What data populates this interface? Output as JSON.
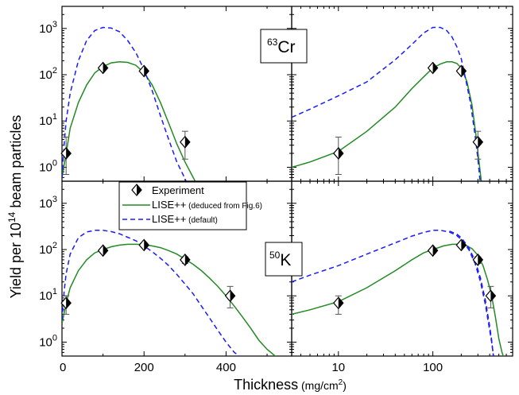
{
  "chart_data": [
    {
      "panel": "top-left",
      "type": "scatter",
      "xscale": "linear",
      "yscale": "log",
      "xlim": [
        0,
        560
      ],
      "ylim": [
        0.5,
        3000
      ],
      "isotope": {
        "mass": "63",
        "symbol": "Cr"
      },
      "experiment": [
        {
          "x": 10,
          "y": 2.0,
          "err": [
            0.7,
            4.5
          ]
        },
        {
          "x": 100,
          "y": 140,
          "err": [
            130,
            150
          ]
        },
        {
          "x": 200,
          "y": 120,
          "err": [
            110,
            130
          ]
        },
        {
          "x": 300,
          "y": 3.5,
          "err": [
            1.5,
            6
          ]
        }
      ],
      "series": [
        {
          "name": "LISE++",
          "style": "solid",
          "color": "#228b22",
          "x": [
            0,
            10,
            20,
            40,
            60,
            80,
            100,
            120,
            140,
            160,
            180,
            200,
            220,
            240,
            260,
            280,
            300,
            320,
            330
          ],
          "y": [
            0.6,
            2.0,
            7,
            25,
            60,
            110,
            150,
            180,
            190,
            185,
            160,
            110,
            60,
            25,
            9,
            3.2,
            1.3,
            0.6,
            0.4
          ]
        },
        {
          "name": "LISE++",
          "style": "dashed",
          "color": "#1a1aff",
          "x": [
            0,
            5,
            10,
            20,
            40,
            60,
            80,
            100,
            120,
            140,
            160,
            180,
            200,
            220,
            240,
            260,
            280,
            295,
            305
          ],
          "y": [
            0.6,
            3,
            10,
            40,
            200,
            550,
            900,
            1050,
            1020,
            850,
            550,
            300,
            130,
            45,
            13,
            4,
            1.3,
            0.7,
            0.45
          ]
        }
      ]
    },
    {
      "panel": "top-right",
      "type": "scatter",
      "xscale": "log",
      "yscale": "log",
      "xlim": [
        3.2,
        700
      ],
      "ylim": [
        0.5,
        3000
      ],
      "experiment": [
        {
          "x": 10,
          "y": 2.0,
          "err": [
            0.7,
            4.5
          ]
        },
        {
          "x": 100,
          "y": 140,
          "err": [
            130,
            150
          ]
        },
        {
          "x": 200,
          "y": 120,
          "err": [
            110,
            130
          ]
        },
        {
          "x": 300,
          "y": 3.5,
          "err": [
            1.5,
            6
          ]
        }
      ],
      "series": [
        {
          "name": "LISE++",
          "style": "solid",
          "color": "#228b22",
          "x": [
            3.2,
            5,
            10,
            20,
            40,
            60,
            80,
            100,
            120,
            140,
            160,
            180,
            200,
            230,
            260,
            290,
            310,
            330
          ],
          "y": [
            1.0,
            1.3,
            2.2,
            6,
            20,
            50,
            90,
            140,
            170,
            190,
            190,
            175,
            140,
            70,
            22,
            4,
            1.2,
            0.4
          ]
        },
        {
          "name": "LISE++",
          "style": "dashed",
          "color": "#1a1aff",
          "x": [
            3.2,
            5,
            10,
            20,
            40,
            60,
            80,
            100,
            120,
            140,
            160,
            180,
            200,
            220,
            250,
            280,
            300,
            320
          ],
          "y": [
            12,
            18,
            35,
            70,
            210,
            450,
            800,
            1050,
            1050,
            900,
            650,
            400,
            220,
            90,
            25,
            5,
            1.5,
            0.4
          ]
        }
      ]
    },
    {
      "panel": "bottom-left",
      "type": "scatter",
      "xscale": "linear",
      "yscale": "log",
      "xlim": [
        0,
        560
      ],
      "ylim": [
        0.5,
        3000
      ],
      "isotope": {
        "mass": "50",
        "symbol": "K"
      },
      "experiment": [
        {
          "x": 10,
          "y": 7,
          "err": [
            4,
            10
          ]
        },
        {
          "x": 100,
          "y": 95,
          "err": [
            85,
            105
          ]
        },
        {
          "x": 200,
          "y": 125,
          "err": [
            110,
            140
          ]
        },
        {
          "x": 300,
          "y": 60,
          "err": [
            50,
            70
          ]
        },
        {
          "x": 410,
          "y": 10,
          "err": [
            5.5,
            16
          ]
        }
      ],
      "series": [
        {
          "name": "LISE++",
          "style": "solid",
          "color": "#228b22",
          "x": [
            0,
            10,
            20,
            40,
            60,
            80,
            100,
            120,
            140,
            160,
            180,
            200,
            220,
            240,
            260,
            280,
            300,
            320,
            340,
            360,
            380,
            400,
            420,
            440,
            460,
            480,
            500,
            520,
            530
          ],
          "y": [
            2.5,
            7,
            15,
            35,
            60,
            85,
            100,
            115,
            125,
            130,
            130,
            128,
            120,
            110,
            95,
            80,
            62,
            48,
            35,
            24,
            16,
            10,
            6,
            3.5,
            2.0,
            1.1,
            0.7,
            0.5,
            0.4
          ]
        },
        {
          "name": "LISE++",
          "style": "dashed",
          "color": "#1a1aff",
          "x": [
            0,
            5,
            10,
            20,
            40,
            60,
            80,
            100,
            120,
            140,
            160,
            180,
            200,
            220,
            240,
            260,
            280,
            300,
            320,
            340,
            360,
            380,
            400,
            420,
            440,
            450
          ],
          "y": [
            3,
            12,
            30,
            80,
            180,
            240,
            260,
            260,
            245,
            220,
            185,
            155,
            120,
            90,
            65,
            45,
            29,
            18,
            11,
            6,
            3.3,
            1.8,
            1.0,
            0.6,
            0.45,
            0.4
          ]
        }
      ]
    },
    {
      "panel": "bottom-right",
      "type": "scatter",
      "xscale": "log",
      "yscale": "log",
      "xlim": [
        3.2,
        700
      ],
      "ylim": [
        0.5,
        3000
      ],
      "experiment": [
        {
          "x": 10,
          "y": 7,
          "err": [
            4,
            10
          ]
        },
        {
          "x": 100,
          "y": 95,
          "err": [
            85,
            105
          ]
        },
        {
          "x": 200,
          "y": 125,
          "err": [
            110,
            140
          ]
        },
        {
          "x": 300,
          "y": 60,
          "err": [
            50,
            70
          ]
        },
        {
          "x": 410,
          "y": 10,
          "err": [
            5.5,
            16
          ]
        }
      ],
      "series": [
        {
          "name": "LISE++",
          "style": "solid",
          "color": "#228b22",
          "x": [
            3.2,
            5,
            10,
            20,
            40,
            60,
            80,
            100,
            130,
            160,
            190,
            220,
            260,
            300,
            340,
            380,
            420,
            460,
            500,
            540,
            580
          ],
          "y": [
            4,
            5,
            7.5,
            15,
            35,
            60,
            85,
            100,
            120,
            130,
            130,
            125,
            105,
            75,
            45,
            22,
            10,
            3.5,
            1.2,
            0.6,
            0.4
          ]
        },
        {
          "name": "LISE++",
          "style": "dashed",
          "color": "#1a1aff",
          "x": [
            3.2,
            5,
            10,
            20,
            40,
            60,
            80,
            100,
            120,
            150,
            180,
            200,
            240,
            280,
            320,
            360,
            400,
            420,
            440,
            450
          ],
          "y": [
            20,
            28,
            45,
            80,
            140,
            195,
            235,
            260,
            260,
            240,
            200,
            165,
            100,
            50,
            20,
            6.5,
            1.8,
            1.0,
            0.5,
            0.4
          ]
        },
        {
          "name": "LISE++",
          "style": "dashed",
          "color": "#1a1aff",
          "x": [
            150,
            180,
            200,
            240,
            280,
            320,
            360,
            400,
            420,
            440
          ],
          "y": [
            250,
            215,
            180,
            110,
            58,
            24,
            8,
            2.2,
            1.1,
            0.45
          ]
        }
      ]
    }
  ],
  "axes": {
    "ylabel_parts": [
      "Yield per 10",
      "14",
      " beam particles"
    ],
    "xlabel_parts": [
      "Thickness",
      " (mg/cm",
      "2",
      ")"
    ],
    "y_ticks": [
      {
        "value": 1,
        "base": "10",
        "exp": "0"
      },
      {
        "value": 10,
        "base": "10",
        "exp": "1"
      },
      {
        "value": 100,
        "base": "10",
        "exp": "2"
      },
      {
        "value": 1000,
        "base": "10",
        "exp": "3"
      }
    ],
    "x_ticks_linear": [
      {
        "value": 0,
        "label": "0"
      },
      {
        "value": 200,
        "label": "200"
      },
      {
        "value": 400,
        "label": "400"
      }
    ],
    "x_ticks_log": [
      {
        "value": 10,
        "label": "10"
      },
      {
        "value": 100,
        "label": "100"
      }
    ]
  },
  "legend": {
    "position": "center",
    "items": [
      {
        "label": "Experiment",
        "note": "",
        "kind": "marker"
      },
      {
        "label": "LISE++",
        "note": " (deduced from Fig.6)",
        "kind": "solid",
        "color": "#228b22"
      },
      {
        "label": "LISE++",
        "note": " (default)",
        "kind": "dashed",
        "color": "#1a1aff"
      }
    ]
  }
}
